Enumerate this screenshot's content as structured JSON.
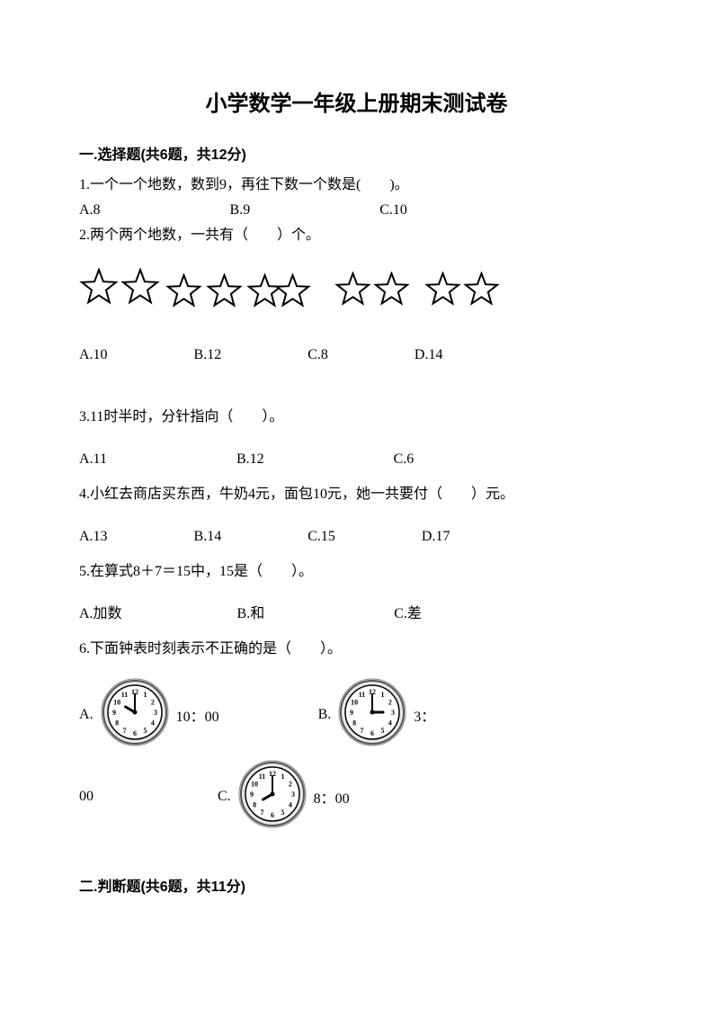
{
  "title": "小学数学一年级上册期末测试卷",
  "section1": {
    "header": "一.选择题(共6题，共12分)",
    "q1": {
      "text": "1.一个一个地数，数到9，再往下数一个数是(　　)。",
      "opts": " A.8　　　　　　　　　B.9　　　　　　　　　C.10"
    },
    "q2": {
      "text": "2.两个两个地数，一共有（　　）个。",
      "opts": "A.10　　　　　　B.12　　　　　　C.8　　　　　　D.14"
    },
    "q3": {
      "text": "3.11时半时，分针指向（　　）。",
      "opts": "A.11　　　　　　　　　B.12　　　　　　　　　C.6"
    },
    "q4": {
      "text": "4.小红去商店买东西，牛奶4元，面包10元，她一共要付（　　）元。",
      "opts": "A.13　　　　　　B.14　　　　　　C.15　　　　　　D.17"
    },
    "q5": {
      "text": "5.在算式8＋7＝15中，15是（　　）。",
      "opts": "A.加数　　　　　　　　B.和　　　　　　　　　C.差"
    },
    "q6": {
      "text": "6.下面钟表时刻表示不正确的是（　　）。",
      "labelA": "A.",
      "afterA": "10：00",
      "labelB": "B.",
      "afterB": "3：",
      "before00": "00",
      "labelC": "C.",
      "afterC": "8：00"
    }
  },
  "section2": {
    "header": "二.判断题(共6题，共11分)"
  },
  "stars": {
    "count": 10,
    "sizes": [
      44,
      44,
      41,
      41,
      41,
      41,
      41,
      41,
      41,
      41
    ],
    "gaps": [
      0,
      2,
      6,
      4,
      4,
      -10,
      26,
      2,
      16,
      2
    ],
    "yoff": [
      0,
      0,
      10,
      10,
      10,
      10,
      6,
      6,
      6,
      6
    ],
    "stroke": "#000000",
    "fill": "#ffffff",
    "strokeWidth": 2
  },
  "clocks": {
    "size": 76,
    "stroke": "#000000",
    "bg": "#e8e8e8",
    "face": "#ffffff",
    "clockA": {
      "hour": 10,
      "minute": 0
    },
    "clockB": {
      "hour": 3,
      "minute": 0
    },
    "clockC": {
      "hour": 8,
      "minute": 0
    }
  }
}
